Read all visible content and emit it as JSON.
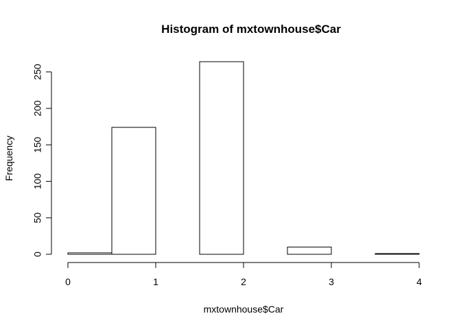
{
  "chart_data": {
    "type": "bar",
    "title": "Histogram of mxtownhouse$Car",
    "xlabel": "mxtownhouse$Car",
    "ylabel": "Frequency",
    "bins": [
      {
        "from": 0.0,
        "to": 0.5,
        "count": 2
      },
      {
        "from": 0.5,
        "to": 1.0,
        "count": 174
      },
      {
        "from": 1.0,
        "to": 1.5,
        "count": 0
      },
      {
        "from": 1.5,
        "to": 2.0,
        "count": 264
      },
      {
        "from": 2.0,
        "to": 2.5,
        "count": 0
      },
      {
        "from": 2.5,
        "to": 3.0,
        "count": 10
      },
      {
        "from": 3.0,
        "to": 3.5,
        "count": 0
      },
      {
        "from": 3.5,
        "to": 4.0,
        "count": 1
      }
    ],
    "xlim": [
      0,
      4
    ],
    "ylim": [
      0,
      264
    ],
    "xticks": [
      0,
      1,
      2,
      3,
      4
    ],
    "yticks": [
      0,
      50,
      100,
      150,
      200,
      250
    ],
    "grid": false,
    "legend": "none"
  }
}
